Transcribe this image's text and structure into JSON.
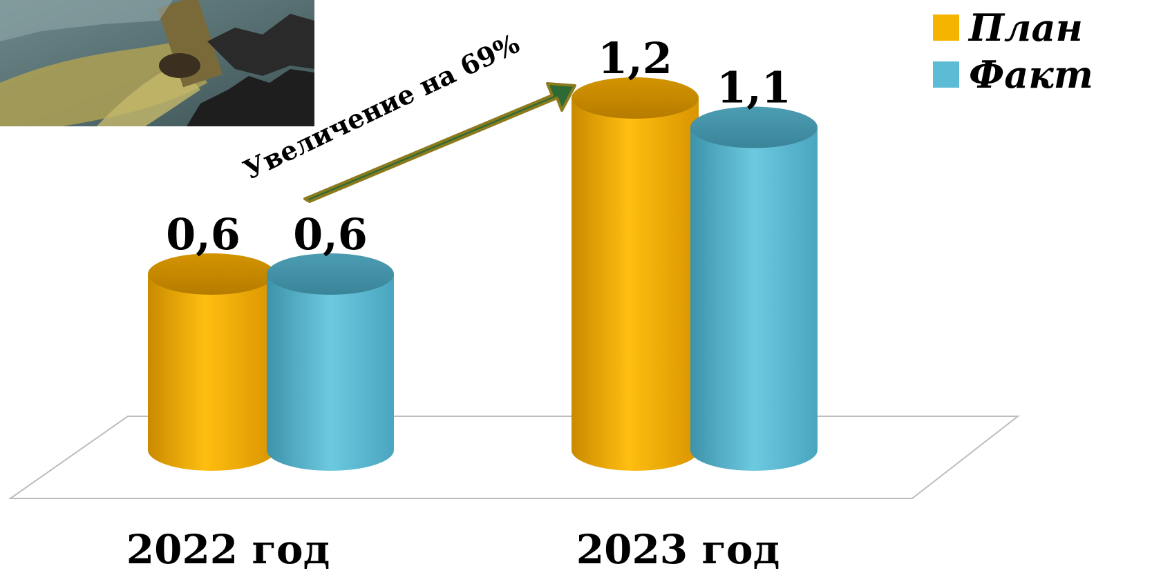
{
  "chart_data": {
    "type": "bar",
    "categories": [
      "2022 год",
      "2023 год"
    ],
    "series": [
      {
        "name": "План",
        "values": [
          0.6,
          1.2
        ],
        "value_labels": [
          "0,6",
          "1,2"
        ],
        "color": "#F5B400"
      },
      {
        "name": "Факт",
        "values": [
          0.6,
          1.1
        ],
        "value_labels": [
          "0,6",
          "1,1"
        ],
        "color": "#5CBCD6"
      }
    ],
    "annotation": "Увеличение на 69%",
    "arrow_color": "#2E6B34",
    "legend_placement": "top-right",
    "style": "3d-cylinder",
    "grid": false
  },
  "legend": [
    {
      "label": "План",
      "color": "#F5B400"
    },
    {
      "label": "Факт",
      "color": "#5CBCD6"
    }
  ]
}
